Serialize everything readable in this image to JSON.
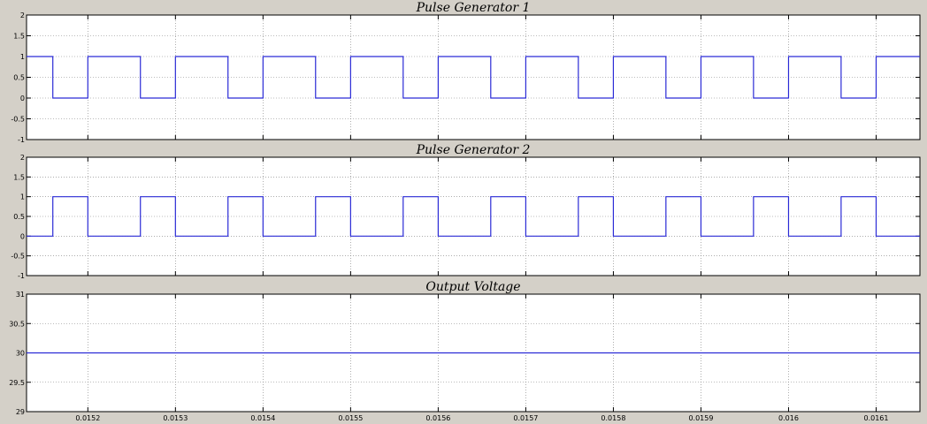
{
  "chart_data": [
    {
      "type": "line",
      "title": "Pulse Generator 1",
      "xlabel": "",
      "ylabel": "",
      "xlim": [
        0.01513,
        0.01615
      ],
      "ylim": [
        -1,
        2
      ],
      "y_ticks": [
        "2",
        "1.5",
        "1",
        "0.5",
        "0",
        "-0.5",
        "-1"
      ],
      "y_tick_values": [
        2,
        1.5,
        1,
        0.5,
        0,
        -0.5,
        -1
      ],
      "x_tick_values": [
        0.0152,
        0.0153,
        0.0154,
        0.0155,
        0.0156,
        0.0157,
        0.0158,
        0.0159,
        0.016,
        0.0161
      ],
      "x_tick_labels": [],
      "grid": true,
      "series": [
        {
          "color": "#2b2bd6",
          "x": [
            0.01513,
            0.01516,
            0.01516,
            0.0152,
            0.0152,
            0.01526,
            0.01526,
            0.0153,
            0.0153,
            0.01536,
            0.01536,
            0.0154,
            0.0154,
            0.01546,
            0.01546,
            0.0155,
            0.0155,
            0.01556,
            0.01556,
            0.0156,
            0.0156,
            0.01566,
            0.01566,
            0.0157,
            0.0157,
            0.01576,
            0.01576,
            0.0158,
            0.0158,
            0.01586,
            0.01586,
            0.0159,
            0.0159,
            0.01596,
            0.01596,
            0.016,
            0.016,
            0.01606,
            0.01606,
            0.0161,
            0.0161,
            0.01615
          ],
          "y": [
            1,
            1,
            0,
            0,
            1,
            1,
            0,
            0,
            1,
            1,
            0,
            0,
            1,
            1,
            0,
            0,
            1,
            1,
            0,
            0,
            1,
            1,
            0,
            0,
            1,
            1,
            0,
            0,
            1,
            1,
            0,
            0,
            1,
            1,
            0,
            0,
            1,
            1,
            0,
            0,
            1,
            1
          ]
        }
      ]
    },
    {
      "type": "line",
      "title": "Pulse Generator 2",
      "xlabel": "",
      "ylabel": "",
      "xlim": [
        0.01513,
        0.01615
      ],
      "ylim": [
        -1,
        2
      ],
      "y_ticks": [
        "2",
        "1.5",
        "1",
        "0.5",
        "0",
        "-0.5",
        "-1"
      ],
      "y_tick_values": [
        2,
        1.5,
        1,
        0.5,
        0,
        -0.5,
        -1
      ],
      "x_tick_values": [
        0.0152,
        0.0153,
        0.0154,
        0.0155,
        0.0156,
        0.0157,
        0.0158,
        0.0159,
        0.016,
        0.0161
      ],
      "x_tick_labels": [],
      "grid": true,
      "series": [
        {
          "color": "#2b2bd6",
          "x": [
            0.01513,
            0.01516,
            0.01516,
            0.0152,
            0.0152,
            0.01526,
            0.01526,
            0.0153,
            0.0153,
            0.01536,
            0.01536,
            0.0154,
            0.0154,
            0.01546,
            0.01546,
            0.0155,
            0.0155,
            0.01556,
            0.01556,
            0.0156,
            0.0156,
            0.01566,
            0.01566,
            0.0157,
            0.0157,
            0.01576,
            0.01576,
            0.0158,
            0.0158,
            0.01586,
            0.01586,
            0.0159,
            0.0159,
            0.01596,
            0.01596,
            0.016,
            0.016,
            0.01606,
            0.01606,
            0.0161,
            0.0161,
            0.01615
          ],
          "y": [
            0,
            0,
            1,
            1,
            0,
            0,
            1,
            1,
            0,
            0,
            1,
            1,
            0,
            0,
            1,
            1,
            0,
            0,
            1,
            1,
            0,
            0,
            1,
            1,
            0,
            0,
            1,
            1,
            0,
            0,
            1,
            1,
            0,
            0,
            1,
            1,
            0,
            0,
            1,
            1,
            0,
            0
          ]
        }
      ]
    },
    {
      "type": "line",
      "title": "Output Voltage",
      "xlabel": "",
      "ylabel": "",
      "xlim": [
        0.01513,
        0.01615
      ],
      "ylim": [
        29,
        31
      ],
      "y_ticks": [
        "31",
        "30.5",
        "30",
        "29.5",
        "29"
      ],
      "y_tick_values": [
        31,
        30.5,
        30,
        29.5,
        29
      ],
      "x_tick_values": [
        0.0152,
        0.0153,
        0.0154,
        0.0155,
        0.0156,
        0.0157,
        0.0158,
        0.0159,
        0.016,
        0.0161
      ],
      "x_tick_labels": [
        "0.0152",
        "0.0153",
        "0.0154",
        "0.0155",
        "0.0156",
        "0.0157",
        "0.0158",
        "0.0159",
        "0.016",
        "0.0161"
      ],
      "grid": true,
      "series": [
        {
          "color": "#2b2bd6",
          "x": [
            0.01513,
            0.01615
          ],
          "y": [
            30,
            30
          ]
        }
      ]
    }
  ]
}
